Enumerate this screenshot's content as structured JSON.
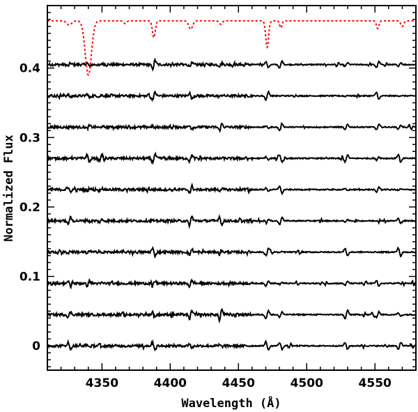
{
  "chart_data": {
    "type": "line",
    "xlabel": "Wavelength (Å)",
    "ylabel": "Normalized Flux",
    "xlim": [
      4310,
      4580
    ],
    "ylim": [
      -0.035,
      0.49
    ],
    "xticks": [
      4350,
      4400,
      4450,
      4500,
      4550
    ],
    "xtick_labels": [
      "4350",
      "4400",
      "4450",
      "4500",
      "4550"
    ],
    "yticks": [
      0,
      0.1,
      0.2,
      0.3,
      0.4
    ],
    "ytick_labels": [
      "0",
      "0.1",
      "0.2",
      "0.3",
      "0.4"
    ],
    "grid": false,
    "legend": "none",
    "reference_series": {
      "style": "dotted",
      "color": "#ff0000",
      "continuum": 0.468,
      "absorption_lines": [
        {
          "center": 4340,
          "depth": 0.078,
          "width": 3.2
        },
        {
          "center": 4388,
          "depth": 0.024,
          "width": 1.5
        },
        {
          "center": 4471,
          "depth": 0.038,
          "width": 1.5
        },
        {
          "center": 4481,
          "depth": 0.01,
          "width": 1.2
        },
        {
          "center": 4552,
          "depth": 0.011,
          "width": 1.3
        },
        {
          "center": 4326,
          "depth": 0.006,
          "width": 2.5
        },
        {
          "center": 4415,
          "depth": 0.012,
          "width": 2.0
        },
        {
          "center": 4570,
          "depth": 0.008,
          "width": 1.5
        },
        {
          "center": 4367,
          "depth": 0.004,
          "width": 1.5
        },
        {
          "center": 4437,
          "depth": 0.005,
          "width": 1.5
        }
      ]
    },
    "residual_series": {
      "style": "solid",
      "color": "#000000",
      "offsets": [
        0.405,
        0.36,
        0.315,
        0.27,
        0.225,
        0.18,
        0.135,
        0.09,
        0.045,
        0.0
      ],
      "feature_lines": [
        4326,
        4340,
        4349,
        4388,
        4415,
        4437,
        4471,
        4481,
        4529,
        4552,
        4568
      ]
    }
  }
}
